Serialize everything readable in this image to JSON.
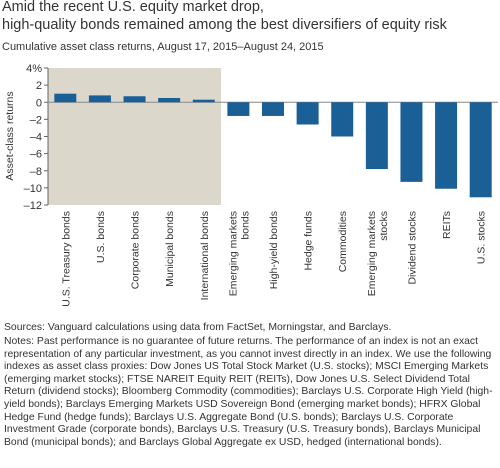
{
  "chart_data": {
    "type": "bar",
    "title": [
      "Amid the recent U.S. equity market drop,",
      "high-quality bonds remained among the best diversifiers of equity risk"
    ],
    "subtitle": "Cumulative asset class returns, August 17, 2015–August 24, 2015",
    "y_label": "Asset-class returns",
    "categories": [
      "U.S. Treasury bonds",
      "U.S. bonds",
      "Corporate bonds",
      "Municipal bonds",
      "International bonds",
      "Emerging markets bonds",
      "High-yield bonds",
      "Hedge funds",
      "Commodities",
      "Emerging markets stocks",
      "Dividend stocks",
      "REITs",
      "U.S. stocks"
    ],
    "values": [
      1.0,
      0.8,
      0.7,
      0.5,
      0.3,
      -1.6,
      -1.6,
      -2.6,
      -4.0,
      -7.8,
      -9.3,
      -10.1,
      -11.1
    ],
    "color": "#1a5f96",
    "ylim": [
      -12,
      4
    ],
    "yticks": [
      {
        "value": 4,
        "label": "4%"
      },
      2,
      0,
      {
        "value": -2,
        "label": "–2"
      },
      {
        "value": -4,
        "label": "–4"
      },
      {
        "value": -6,
        "label": "–6"
      },
      {
        "value": -8,
        "label": "–8"
      },
      {
        "value": -10,
        "label": "–10"
      },
      {
        "value": -12,
        "label": "–12"
      }
    ],
    "sources": "Sources: Vanguard calculations using data from FactSet, Morningstar, and Barclays.",
    "notes": "Notes: Past performance is no guarantee of future returns. The performance of an index is not an exact representation of any particular investment, as you cannot invest directly in an index. We use the following indexes as asset class proxies: Dow Jones US Total Stock Market (U.S. stocks); MSCI Emerging Markets (emerging market stocks); FTSE NAREIT Equity REIT (REITs), Dow Jones U.S. Select Dividend Total Return (dividend stocks); Bloomberg Commodity (commodities); Barclays U.S. Corporate High Yield (high-yield bonds); Barclays Emerging Markets USD Sovereign Bond (emerging market bonds); HFRX Global Hedge Fund (hedge funds); Barclays U.S. Aggregate Bond (U.S. bonds); Barclays U.S. Corporate Investment Grade (corporate bonds), Barclays U.S. Treasury (U.S. Treasury bonds), Barclays Municipal Bond (municipal bonds); and Barclays Global Aggregate ex USD, hedged (international bonds)."
  }
}
